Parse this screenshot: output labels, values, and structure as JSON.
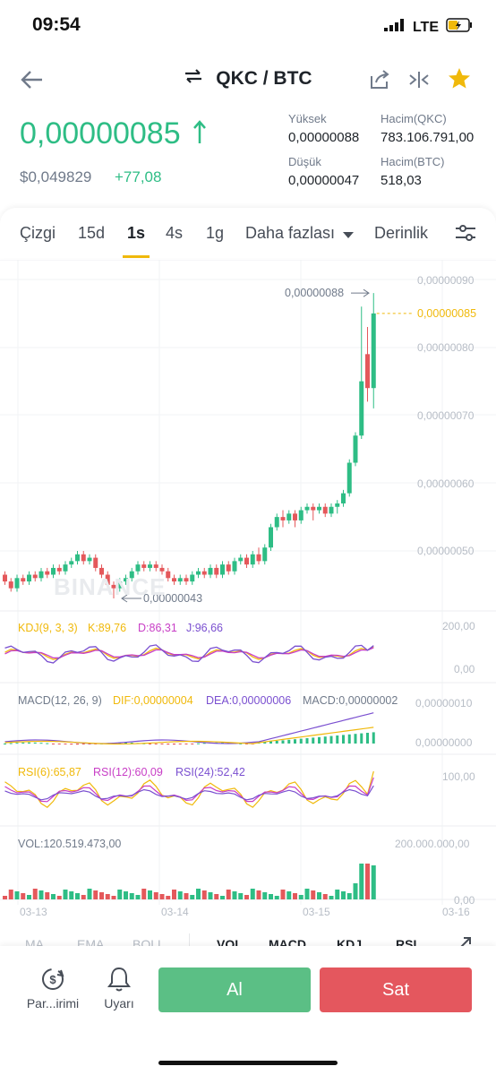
{
  "status": {
    "time": "09:54",
    "network": "LTE"
  },
  "header": {
    "pair": "QKC / BTC"
  },
  "ticker": {
    "last": "0,00000085",
    "usd": "$0,049829",
    "change": "+77,08",
    "high_label": "Yüksek",
    "high": "0,00000088",
    "low_label": "Düşük",
    "low": "0,00000047",
    "vol_qkc_label": "Hacim(QKC)",
    "vol_qkc": "783.106.791,00",
    "vol_btc_label": "Hacim(BTC)",
    "vol_btc": "518,03"
  },
  "tabs": {
    "line": "Çizgi",
    "m15": "15d",
    "h1": "1s",
    "h4": "4s",
    "d1": "1g",
    "more": "Daha fazlası",
    "depth": "Derinlik"
  },
  "chart": {
    "y_ticks": [
      "0,00000090",
      "0,00000080",
      "0,00000070",
      "0,00000060",
      "0,00000050"
    ],
    "current_price": "0,00000085",
    "high_marker": "0,00000088",
    "low_marker": "0,00000043",
    "watermark": "BINANCE",
    "x_ticks": [
      "03-13",
      "03-14",
      "03-15",
      "03-16"
    ]
  },
  "indicators": {
    "kdj": {
      "name": "KDJ(9, 3, 3)",
      "k": "K:89,76",
      "d": "D:86,31",
      "j": "J:96,66",
      "max": "200,00",
      "min": "0,00"
    },
    "macd": {
      "name": "MACD(12, 26, 9)",
      "dif": "DIF:0,00000004",
      "dea": "DEA:0,00000006",
      "macd": "MACD:0,00000002",
      "max": "0,00000010",
      "min": "0,00000000"
    },
    "rsi": {
      "rsi6": "RSI(6):65,87",
      "rsi12": "RSI(12):60,09",
      "rsi24": "RSI(24):52,42",
      "max": "100,00"
    },
    "vol": {
      "label": "VOL:120.519.473,00",
      "max": "200.000.000,00",
      "min": "0,00"
    }
  },
  "bottom_tabs": {
    "ma": "MA",
    "ema": "EMA",
    "boll": "BOLL",
    "vol": "VOL",
    "macd": "MACD",
    "kdj": "KDJ",
    "rsi": "RSI"
  },
  "actions": {
    "convert": "Par...irimi",
    "alert": "Uyarı",
    "buy": "Al",
    "sell": "Sat"
  },
  "colors": {
    "up": "#2ebd85",
    "down": "#e4585b",
    "accent": "#f0b90b",
    "buy_btn": "#5bbf85",
    "sell_btn": "#e4575e"
  },
  "chart_data": {
    "type": "candlestick",
    "x_ticks": [
      "03-13",
      "03-14",
      "03-15",
      "03-16"
    ],
    "y_ticks": [
      "0,00000090",
      "0,00000080",
      "0,00000070",
      "0,00000060",
      "0,00000050"
    ],
    "ylim": [
      4.2e-07,
      9e-07
    ],
    "candles": [
      [
        4.65e-07,
        4.55e-07,
        4.7e-07,
        4.5e-07
      ],
      [
        4.55e-07,
        4.45e-07,
        4.6e-07,
        4.4e-07
      ],
      [
        4.45e-07,
        4.6e-07,
        4.65e-07,
        4.4e-07
      ],
      [
        4.6e-07,
        4.55e-07,
        4.65e-07,
        4.5e-07
      ],
      [
        4.55e-07,
        4.65e-07,
        4.7e-07,
        4.5e-07
      ],
      [
        4.65e-07,
        4.6e-07,
        4.7e-07,
        4.55e-07
      ],
      [
        4.6e-07,
        4.7e-07,
        4.75e-07,
        4.55e-07
      ],
      [
        4.7e-07,
        4.65e-07,
        4.75e-07,
        4.6e-07
      ],
      [
        4.65e-07,
        4.75e-07,
        4.8e-07,
        4.6e-07
      ],
      [
        4.75e-07,
        4.7e-07,
        4.8e-07,
        4.65e-07
      ],
      [
        4.7e-07,
        4.8e-07,
        4.85e-07,
        4.65e-07
      ],
      [
        4.8e-07,
        4.85e-07,
        4.9e-07,
        4.75e-07
      ],
      [
        4.85e-07,
        4.95e-07,
        5e-07,
        4.8e-07
      ],
      [
        4.95e-07,
        4.85e-07,
        5e-07,
        4.8e-07
      ],
      [
        4.85e-07,
        4.9e-07,
        4.95e-07,
        4.8e-07
      ],
      [
        4.9e-07,
        4.75e-07,
        4.95e-07,
        4.7e-07
      ],
      [
        4.75e-07,
        4.65e-07,
        4.8e-07,
        4.6e-07
      ],
      [
        4.65e-07,
        4.5e-07,
        4.7e-07,
        4.45e-07
      ],
      [
        4.5e-07,
        4.45e-07,
        4.55e-07,
        4.3e-07
      ],
      [
        4.45e-07,
        4.55e-07,
        4.6e-07,
        4.4e-07
      ],
      [
        4.55e-07,
        4.6e-07,
        4.65e-07,
        4.5e-07
      ],
      [
        4.6e-07,
        4.7e-07,
        4.75e-07,
        4.55e-07
      ],
      [
        4.7e-07,
        4.8e-07,
        4.85e-07,
        4.65e-07
      ],
      [
        4.8e-07,
        4.75e-07,
        4.85e-07,
        4.7e-07
      ],
      [
        4.75e-07,
        4.8e-07,
        4.85e-07,
        4.7e-07
      ],
      [
        4.8e-07,
        4.75e-07,
        4.85e-07,
        4.7e-07
      ],
      [
        4.75e-07,
        4.7e-07,
        4.8e-07,
        4.65e-07
      ],
      [
        4.7e-07,
        4.6e-07,
        4.75e-07,
        4.55e-07
      ],
      [
        4.6e-07,
        4.55e-07,
        4.65e-07,
        4.5e-07
      ],
      [
        4.55e-07,
        4.6e-07,
        4.65e-07,
        4.5e-07
      ],
      [
        4.6e-07,
        4.55e-07,
        4.65e-07,
        4.5e-07
      ],
      [
        4.55e-07,
        4.65e-07,
        4.7e-07,
        4.5e-07
      ],
      [
        4.65e-07,
        4.7e-07,
        4.75e-07,
        4.6e-07
      ],
      [
        4.7e-07,
        4.65e-07,
        4.75e-07,
        4.6e-07
      ],
      [
        4.65e-07,
        4.75e-07,
        4.8e-07,
        4.6e-07
      ],
      [
        4.75e-07,
        4.65e-07,
        4.8e-07,
        4.6e-07
      ],
      [
        4.65e-07,
        4.8e-07,
        4.85e-07,
        4.6e-07
      ],
      [
        4.8e-07,
        4.7e-07,
        4.85e-07,
        4.65e-07
      ],
      [
        4.7e-07,
        4.85e-07,
        4.9e-07,
        4.65e-07
      ],
      [
        4.85e-07,
        4.9e-07,
        4.95e-07,
        4.8e-07
      ],
      [
        4.9e-07,
        4.8e-07,
        4.95e-07,
        4.75e-07
      ],
      [
        4.8e-07,
        4.95e-07,
        5e-07,
        4.75e-07
      ],
      [
        4.95e-07,
        4.85e-07,
        5.05e-07,
        4.8e-07
      ],
      [
        4.85e-07,
        5.05e-07,
        5.1e-07,
        4.8e-07
      ],
      [
        5.05e-07,
        5.35e-07,
        5.4e-07,
        5e-07
      ],
      [
        5.35e-07,
        5.5e-07,
        5.55e-07,
        5.3e-07
      ],
      [
        5.5e-07,
        5.45e-07,
        5.6e-07,
        5.35e-07
      ],
      [
        5.45e-07,
        5.55e-07,
        5.6e-07,
        5.4e-07
      ],
      [
        5.55e-07,
        5.45e-07,
        5.6e-07,
        5.35e-07
      ],
      [
        5.45e-07,
        5.6e-07,
        5.65e-07,
        5.4e-07
      ],
      [
        5.6e-07,
        5.65e-07,
        5.7e-07,
        5.55e-07
      ],
      [
        5.65e-07,
        5.6e-07,
        5.7e-07,
        5.45e-07
      ],
      [
        5.6e-07,
        5.65e-07,
        5.7e-07,
        5.55e-07
      ],
      [
        5.65e-07,
        5.55e-07,
        5.7e-07,
        5.5e-07
      ],
      [
        5.55e-07,
        5.65e-07,
        5.7e-07,
        5.5e-07
      ],
      [
        5.65e-07,
        5.7e-07,
        5.75e-07,
        5.55e-07
      ],
      [
        5.7e-07,
        5.85e-07,
        5.9e-07,
        5.65e-07
      ],
      [
        5.85e-07,
        6.3e-07,
        6.35e-07,
        5.8e-07
      ],
      [
        6.3e-07,
        6.7e-07,
        6.75e-07,
        6.25e-07
      ],
      [
        6.7e-07,
        7.5e-07,
        8.6e-07,
        6.65e-07
      ],
      [
        7.9e-07,
        7.4e-07,
        8.3e-07,
        7.2e-07
      ],
      [
        7.4e-07,
        8.5e-07,
        8.8e-07,
        7.1e-07
      ]
    ],
    "kdj": {
      "k": 89.76,
      "d": 86.31,
      "j": 96.66
    },
    "macd": {
      "dif": 4e-08,
      "dea": 6e-08,
      "macd": 2e-08
    },
    "rsi": {
      "rsi6": 65.87,
      "rsi12": 60.09,
      "rsi24": 52.42
    },
    "vol_last": 120519473
  }
}
